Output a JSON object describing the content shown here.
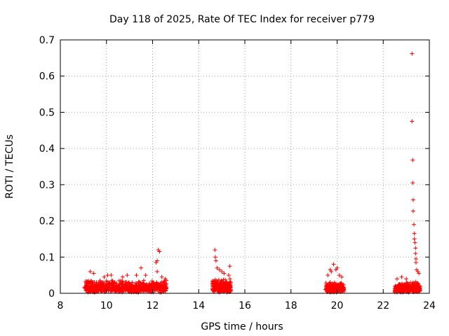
{
  "chart_data": {
    "type": "scatter",
    "title": "Day 118 of 2025, Rate Of TEC Index for receiver p779",
    "xlabel": "GPS time / hours",
    "ylabel": "ROTI / TECUs",
    "xlim": [
      8,
      24
    ],
    "ylim": [
      0,
      0.7
    ],
    "x_ticks": [
      8,
      10,
      12,
      14,
      16,
      18,
      20,
      22,
      24
    ],
    "x_tick_labels": [
      "8",
      "10",
      "12",
      "14",
      "16",
      "18",
      "20",
      "22",
      "24"
    ],
    "y_ticks": [
      0,
      0.1,
      0.2,
      0.3,
      0.4,
      0.5,
      0.6,
      0.7
    ],
    "y_tick_labels": [
      "0",
      "0.1",
      "0.2",
      "0.3",
      "0.4",
      "0.5",
      "0.6",
      "0.7"
    ],
    "grid": true,
    "marker": "+",
    "color": "#ff0000",
    "series": [
      {
        "name": "ROTI",
        "clusters": [
          {
            "start": 9.05,
            "end": 12.6,
            "base_max": 0.035,
            "count": 700
          },
          {
            "start": 14.6,
            "end": 15.4,
            "base_max": 0.04,
            "count": 220
          },
          {
            "start": 19.5,
            "end": 20.3,
            "base_max": 0.03,
            "count": 220
          },
          {
            "start": 22.5,
            "end": 23.6,
            "base_max": 0.03,
            "count": 320
          }
        ],
        "points": [
          [
            9.3,
            0.06
          ],
          [
            9.45,
            0.055
          ],
          [
            9.9,
            0.045
          ],
          [
            10.05,
            0.05
          ],
          [
            10.2,
            0.05
          ],
          [
            10.7,
            0.045
          ],
          [
            10.9,
            0.05
          ],
          [
            11.3,
            0.05
          ],
          [
            11.5,
            0.07
          ],
          [
            11.7,
            0.05
          ],
          [
            12.15,
            0.085
          ],
          [
            12.2,
            0.09
          ],
          [
            12.25,
            0.12
          ],
          [
            12.3,
            0.115
          ],
          [
            12.2,
            0.06
          ],
          [
            12.4,
            0.045
          ],
          [
            12.55,
            0.04
          ],
          [
            14.7,
            0.12
          ],
          [
            14.72,
            0.1
          ],
          [
            14.75,
            0.09
          ],
          [
            14.8,
            0.07
          ],
          [
            14.9,
            0.065
          ],
          [
            15.0,
            0.06
          ],
          [
            15.1,
            0.055
          ],
          [
            15.35,
            0.075
          ],
          [
            15.3,
            0.05
          ],
          [
            19.6,
            0.05
          ],
          [
            19.7,
            0.065
          ],
          [
            19.75,
            0.06
          ],
          [
            19.85,
            0.08
          ],
          [
            19.95,
            0.065
          ],
          [
            20.0,
            0.07
          ],
          [
            20.1,
            0.05
          ],
          [
            20.2,
            0.045
          ],
          [
            22.6,
            0.04
          ],
          [
            22.8,
            0.045
          ],
          [
            23.0,
            0.04
          ],
          [
            23.25,
            0.662
          ],
          [
            23.25,
            0.475
          ],
          [
            23.28,
            0.368
          ],
          [
            23.28,
            0.305
          ],
          [
            23.3,
            0.258
          ],
          [
            23.3,
            0.227
          ],
          [
            23.33,
            0.19
          ],
          [
            23.35,
            0.165
          ],
          [
            23.35,
            0.15
          ],
          [
            23.38,
            0.14
          ],
          [
            23.4,
            0.125
          ],
          [
            23.4,
            0.11
          ],
          [
            23.42,
            0.095
          ],
          [
            23.42,
            0.085
          ],
          [
            23.45,
            0.065
          ],
          [
            23.5,
            0.06
          ],
          [
            23.55,
            0.055
          ]
        ]
      }
    ]
  }
}
